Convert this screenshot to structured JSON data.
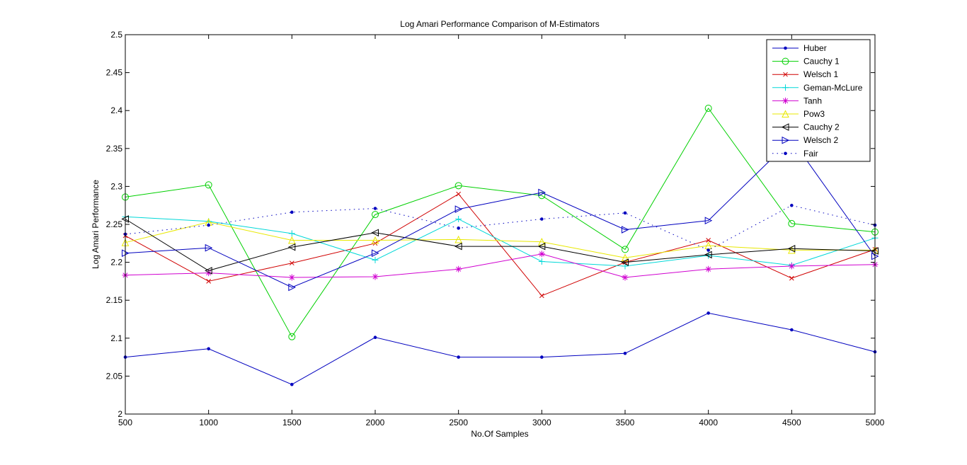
{
  "chart_data": {
    "type": "line",
    "title": "Log Amari Performance Comparison of M-Estimators",
    "xlabel": "No.Of Samples",
    "ylabel": "Log Amari Performance",
    "xlim": [
      500,
      5000
    ],
    "ylim": [
      2,
      2.5
    ],
    "grid": false,
    "legend_position": "top-right",
    "xticks": [
      "500",
      "1000",
      "1500",
      "2000",
      "2500",
      "3000",
      "3500",
      "4000",
      "4500",
      "5000"
    ],
    "yticks": [
      "2",
      "2.05",
      "2.1",
      "2.15",
      "2.2",
      "2.25",
      "2.3",
      "2.35",
      "2.4",
      "2.45",
      "2.5"
    ],
    "x": [
      500,
      1000,
      1500,
      2000,
      2500,
      3000,
      3500,
      4000,
      4500,
      5000
    ],
    "series": [
      {
        "name": "Huber",
        "color": "#0000bf",
        "marker": "dot",
        "line": "solid",
        "values": [
          2.075,
          2.086,
          2.039,
          2.101,
          2.075,
          2.075,
          2.08,
          2.133,
          2.111,
          2.082
        ]
      },
      {
        "name": "Cauchy 1",
        "color": "#00d000",
        "marker": "circle",
        "line": "solid",
        "values": [
          2.286,
          2.302,
          2.102,
          2.263,
          2.301,
          2.288,
          2.217,
          2.403,
          2.251,
          2.24
        ]
      },
      {
        "name": "Welsch 1",
        "color": "#d00000",
        "marker": "x",
        "line": "solid",
        "values": [
          2.235,
          2.175,
          2.199,
          2.225,
          2.29,
          2.156,
          2.2,
          2.229,
          2.179,
          2.217
        ]
      },
      {
        "name": "Geman-McLure",
        "color": "#00d8d8",
        "marker": "plus",
        "line": "solid",
        "values": [
          2.26,
          2.254,
          2.238,
          2.203,
          2.257,
          2.201,
          2.195,
          2.209,
          2.196,
          2.232
        ]
      },
      {
        "name": "Tanh",
        "color": "#d000d0",
        "marker": "star",
        "line": "solid",
        "values": [
          2.183,
          2.186,
          2.18,
          2.181,
          2.191,
          2.211,
          2.18,
          2.191,
          2.195,
          2.197
        ]
      },
      {
        "name": "Pow3",
        "color": "#e8e800",
        "marker": "triangle-up",
        "line": "solid",
        "values": [
          2.226,
          2.253,
          2.229,
          2.229,
          2.23,
          2.227,
          2.206,
          2.222,
          2.216,
          2.216
        ]
      },
      {
        "name": "Cauchy 2",
        "color": "#000000",
        "marker": "triangle-left",
        "line": "solid",
        "values": [
          2.257,
          2.189,
          2.22,
          2.239,
          2.221,
          2.221,
          2.2,
          2.21,
          2.218,
          2.215
        ]
      },
      {
        "name": "Welsch 2",
        "color": "#0000bf",
        "marker": "triangle-right",
        "line": "solid",
        "values": [
          2.212,
          2.219,
          2.167,
          2.212,
          2.27,
          2.292,
          2.243,
          2.255,
          2.362,
          2.208
        ]
      },
      {
        "name": "Fair",
        "color": "#0000bf",
        "marker": "dot",
        "line": "dotted",
        "values": [
          2.237,
          2.249,
          2.266,
          2.271,
          2.245,
          2.257,
          2.265,
          2.216,
          2.275,
          2.249
        ]
      }
    ]
  }
}
